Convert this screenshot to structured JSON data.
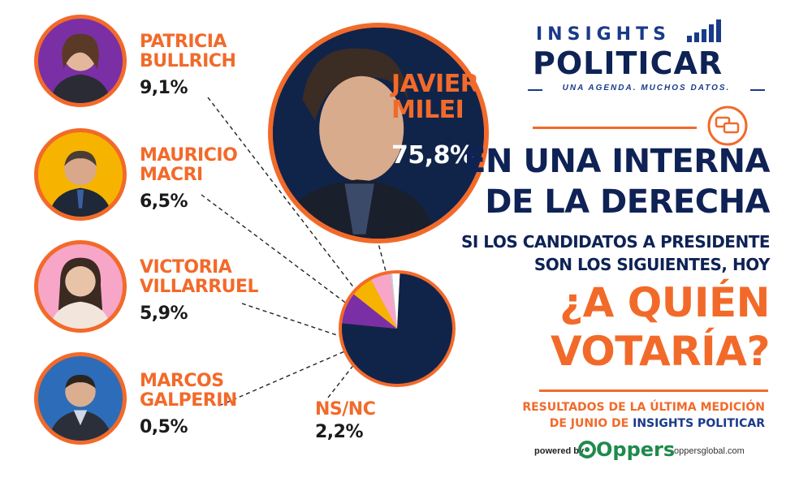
{
  "chart_data": {
    "type": "pie",
    "slices": [
      {
        "label": "JAVIER MILEI",
        "value": 75.8,
        "color": "#10244a"
      },
      {
        "label": "PATRICIA BULLRICH",
        "value": 9.1,
        "color": "#7b2fa5"
      },
      {
        "label": "MAURICIO MACRI",
        "value": 6.5,
        "color": "#f6b400"
      },
      {
        "label": "VICTORIA VILLARRUEL",
        "value": 5.9,
        "color": "#f7a6c8"
      },
      {
        "label": "MARCOS GALPERIN",
        "value": 0.5,
        "color": "#b9d4ef"
      },
      {
        "label": "NS/NC",
        "value": 2.2,
        "color": "#ffffff"
      }
    ]
  },
  "candidates": [
    {
      "name1": "PATRICIA",
      "name2": "BULLRICH",
      "pct": "9,1%",
      "bg": "#7b2fa5"
    },
    {
      "name1": "MAURICIO",
      "name2": "MACRI",
      "pct": "6,5%",
      "bg": "#f6b400"
    },
    {
      "name1": "VICTORIA",
      "name2": "VILLARRUEL",
      "pct": "5,9%",
      "bg": "#f7a6c8"
    },
    {
      "name1": "MARCOS",
      "name2": "GALPERIN",
      "pct": "0,5%",
      "bg": "#2d6cb8"
    }
  ],
  "milei": {
    "name1": "JAVIER",
    "name2": "MILEI",
    "pct": "75,8%"
  },
  "nsnc": {
    "label": "NS/NC",
    "pct": "2,2%"
  },
  "brand": {
    "line1": "INSIGHTS",
    "line2": "POLITICAR",
    "tagline": "UNA AGENDA. MUCHOS DATOS."
  },
  "headline": {
    "l1": "EN UNA INTERNA",
    "l2": "DE LA DERECHA",
    "q1": "SI LOS CANDIDATOS A PRESIDENTE",
    "q2": "SON LOS SIGUIENTES, HOY",
    "big1": "¿A QUIÉN",
    "big2": "VOTARÍA?"
  },
  "results": {
    "l1": "RESULTADOS DE LA ÚLTIMA MEDICIÓN",
    "l2_prefix": "DE JUNIO DE",
    "l2_brand": "INSIGHTS POLITICAR"
  },
  "footer": {
    "powered": "powered by",
    "logo": "Oppers",
    "site": "oppersglobal.com"
  },
  "colors": {
    "orange": "#f26a2a",
    "navy": "#0e2255"
  }
}
